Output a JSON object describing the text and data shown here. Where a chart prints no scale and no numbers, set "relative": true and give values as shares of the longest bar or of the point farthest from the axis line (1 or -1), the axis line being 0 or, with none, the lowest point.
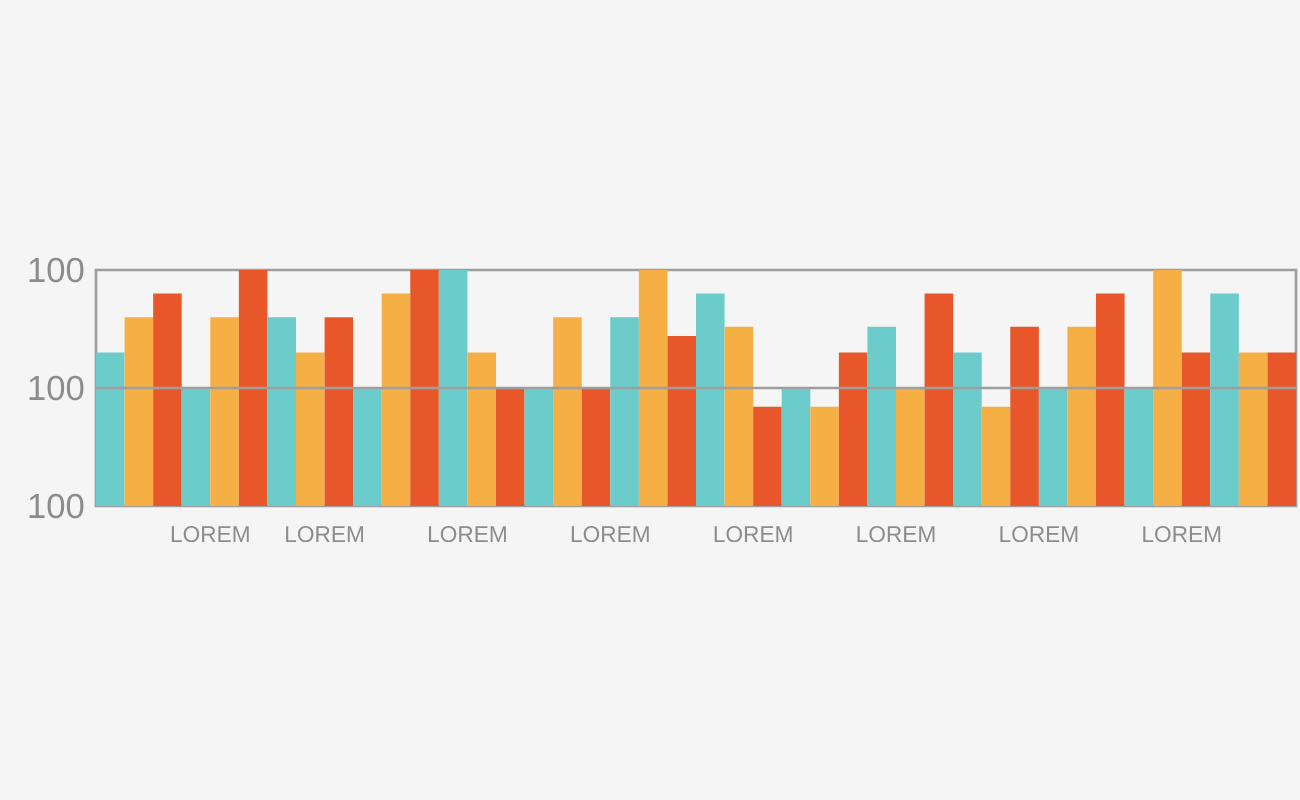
{
  "chart_data": {
    "type": "bar",
    "relative": true,
    "ref_lines": [
      {
        "axis": "y",
        "value": 0.5,
        "color": "#9e9e9e"
      }
    ],
    "categories": [
      null,
      null,
      null,
      "LOREM",
      null,
      null,
      null,
      "LOREM",
      null,
      null,
      null,
      null,
      "LOREM",
      null,
      null,
      null,
      null,
      "LOREM",
      null,
      null,
      null,
      null,
      "LOREM",
      null,
      null,
      null,
      null,
      "LOREM",
      null,
      null,
      null,
      null,
      "LOREM",
      null,
      null,
      null,
      null,
      "LOREM",
      null,
      null,
      null,
      null
    ],
    "values": [
      0.65,
      0.8,
      0.9,
      0.5,
      0.8,
      1,
      0.8,
      0.65,
      0.8,
      0.5,
      0.9,
      1,
      1,
      0.65,
      0.5,
      0.5,
      0.8,
      0.5,
      0.8,
      1,
      0.72,
      0.9,
      0.76,
      0.42,
      0.5,
      0.42,
      0.65,
      0.76,
      0.5,
      0.9,
      0.65,
      0.42,
      0.76,
      0.5,
      0.76,
      0.9,
      0.5,
      1,
      0.65,
      0.9,
      0.65,
      0.65
    ],
    "colors": [
      "#6ccbcb",
      "#f5af45",
      "#e8572a",
      "#6ccbcb",
      "#f5af45",
      "#e8572a",
      "#6ccbcb",
      "#f5af45",
      "#e8572a",
      "#6ccbcb",
      "#f5af45",
      "#e8572a",
      "#6ccbcb",
      "#f5af45",
      "#e8572a",
      "#6ccbcb",
      "#f5af45",
      "#e8572a",
      "#6ccbcb",
      "#f5af45",
      "#e8572a",
      "#6ccbcb",
      "#f5af45",
      "#e8572a",
      "#6ccbcb",
      "#f5af45",
      "#e8572a",
      "#6ccbcb",
      "#f5af45",
      "#e8572a",
      "#6ccbcb",
      "#f5af45",
      "#e8572a",
      "#6ccbcb",
      "#f5af45",
      "#e8572a",
      "#6ccbcb",
      "#f5af45",
      "#e8572a",
      "#6ccbcb",
      "#f5af45",
      "#e8572a"
    ],
    "annotations": [
      "100",
      "100",
      "100"
    ]
  }
}
